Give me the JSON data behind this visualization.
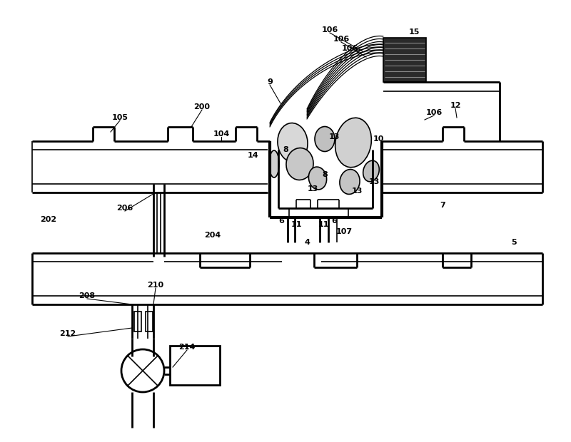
{
  "bg_color": "#ffffff",
  "line_color": "#000000",
  "fig_width": 8.0,
  "fig_height": 6.2
}
